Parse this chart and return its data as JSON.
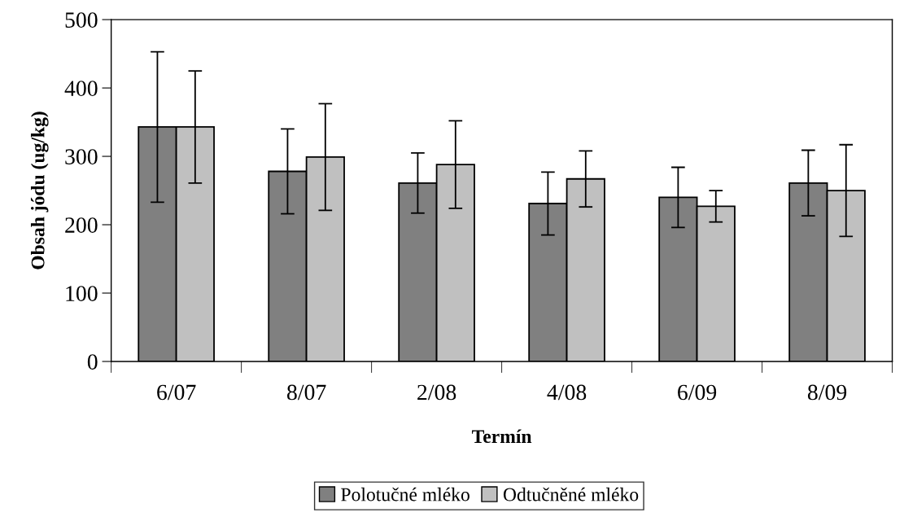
{
  "chart_data": {
    "type": "bar",
    "xlabel": "Termín",
    "ylabel": "Obsah jódu (ug/kg)",
    "categories": [
      "6/07",
      "8/07",
      "2/08",
      "4/08",
      "6/09",
      "8/09"
    ],
    "series": [
      {
        "name": "Polotučné mléko",
        "color": "#808080",
        "values": [
          343,
          278,
          261,
          231,
          240,
          261
        ],
        "errors": [
          110,
          62,
          44,
          46,
          44,
          48
        ]
      },
      {
        "name": "Odtučněné mléko",
        "color": "#c0c0c0",
        "values": [
          343,
          299,
          288,
          267,
          227,
          250
        ],
        "errors": [
          82,
          78,
          64,
          41,
          23,
          67
        ]
      }
    ],
    "ylim": [
      0,
      500
    ],
    "yticks": [
      0,
      100,
      200,
      300,
      400,
      500
    ],
    "grid": false,
    "legend": "bottom"
  }
}
